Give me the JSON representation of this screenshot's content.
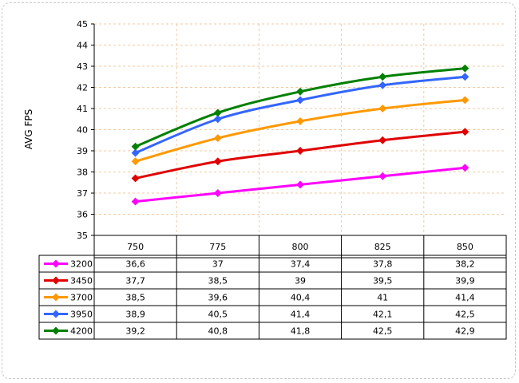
{
  "chart_data": {
    "type": "line",
    "ylabel": "AVG FPS",
    "xlabel": "",
    "title": "",
    "ylim": [
      35,
      45
    ],
    "yticks": [
      35,
      36,
      37,
      38,
      39,
      40,
      41,
      42,
      43,
      44,
      45
    ],
    "categories": [
      "750",
      "775",
      "800",
      "825",
      "850"
    ],
    "grid": true,
    "legend": "data-table-left",
    "series": [
      {
        "name": "3200",
        "color": "#ff00ff",
        "values": [
          36.6,
          37,
          37.4,
          37.8,
          38.2
        ],
        "labels": [
          "36,6",
          "37",
          "37,4",
          "37,8",
          "38,2"
        ]
      },
      {
        "name": "3450",
        "color": "#e00000",
        "values": [
          37.7,
          38.5,
          39,
          39.5,
          39.9
        ],
        "labels": [
          "37,7",
          "38,5",
          "39",
          "39,5",
          "39,9"
        ]
      },
      {
        "name": "3700",
        "color": "#ff9900",
        "values": [
          38.5,
          39.6,
          40.4,
          41,
          41.4
        ],
        "labels": [
          "38,5",
          "39,6",
          "40,4",
          "41",
          "41,4"
        ]
      },
      {
        "name": "3950",
        "color": "#3366ff",
        "values": [
          38.9,
          40.5,
          41.4,
          42.1,
          42.5
        ],
        "labels": [
          "38,9",
          "40,5",
          "41,4",
          "42,1",
          "42,5"
        ]
      },
      {
        "name": "4200",
        "color": "#008000",
        "values": [
          39.2,
          40.8,
          41.8,
          42.5,
          42.9
        ],
        "labels": [
          "39,2",
          "40,8",
          "41,8",
          "42,5",
          "42,9"
        ]
      }
    ]
  }
}
